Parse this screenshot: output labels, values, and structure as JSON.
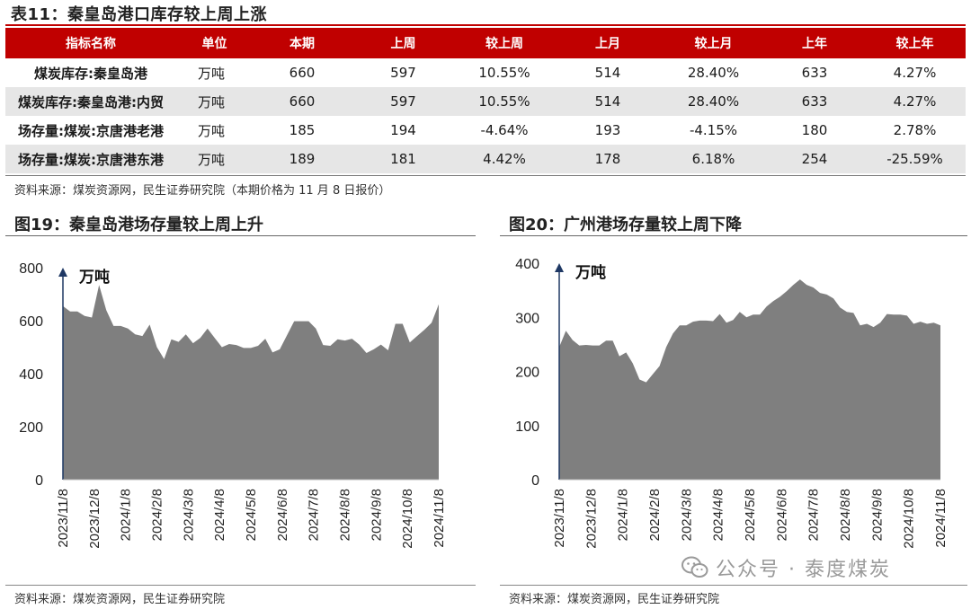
{
  "table": {
    "title": "表11：秦皇岛港口库存较上周上涨",
    "headers": [
      "指标名称",
      "单位",
      "本期",
      "上周",
      "较上周",
      "上月",
      "较上月",
      "上年",
      "较上年"
    ],
    "rows": [
      [
        "煤炭库存:秦皇岛港",
        "万吨",
        "660",
        "597",
        "10.55%",
        "514",
        "28.40%",
        "633",
        "4.27%"
      ],
      [
        "煤炭库存:秦皇岛港:内贸",
        "万吨",
        "660",
        "597",
        "10.55%",
        "514",
        "28.40%",
        "633",
        "4.27%"
      ],
      [
        "场存量:煤炭:京唐港老港",
        "万吨",
        "185",
        "194",
        "-4.64%",
        "193",
        "-4.15%",
        "180",
        "2.78%"
      ],
      [
        "场存量:煤炭:京唐港东港",
        "万吨",
        "189",
        "181",
        "4.42%",
        "178",
        "6.18%",
        "254",
        "-25.59%"
      ]
    ],
    "source": "资料来源：煤炭资源网，民生证券研究院（本期价格为 11 月 8 日报价）"
  },
  "fig19": {
    "title": "图19：秦皇岛港场存量较上周上升",
    "source": "资料来源：煤炭资源网，民生证券研究院"
  },
  "fig20": {
    "title": "图20：广州港场存量较上周下降",
    "source": "资料来源：煤炭资源网，民生证券研究院"
  },
  "watermark": {
    "text": "公众号 · 泰度煤炭",
    "icon": "wechat-icon"
  },
  "colors": {
    "accent": "#c00000",
    "area": "#7f7f7f",
    "axis": "#1f3864"
  },
  "chart_data": [
    {
      "type": "area",
      "title": "图19：秦皇岛港场存量较上周上升",
      "ylabel": "万吨",
      "ylim": [
        0,
        800
      ],
      "yticks": [
        0,
        200,
        400,
        600,
        800
      ],
      "xticks": [
        "2023/11/8",
        "2023/12/8",
        "2024/1/8",
        "2024/2/8",
        "2024/3/8",
        "2024/4/8",
        "2024/5/8",
        "2024/6/8",
        "2024/7/8",
        "2024/8/8",
        "2024/9/8",
        "2024/10/8",
        "2024/11/8"
      ],
      "series": [
        {
          "name": "秦皇岛港场存量",
          "values": [
            655,
            635,
            635,
            618,
            612,
            735,
            640,
            580,
            580,
            570,
            548,
            542,
            585,
            500,
            455,
            530,
            520,
            548,
            515,
            535,
            570,
            535,
            500,
            512,
            508,
            497,
            497,
            505,
            532,
            480,
            492,
            545,
            598,
            598,
            598,
            570,
            508,
            505,
            530,
            525,
            532,
            510,
            478,
            492,
            510,
            488,
            588,
            588,
            518,
            542,
            565,
            592,
            662
          ]
        }
      ]
    },
    {
      "type": "area",
      "title": "图20：广州港场存量较上周下降",
      "ylabel": "万吨",
      "ylim": [
        0,
        400
      ],
      "yticks": [
        0,
        100,
        200,
        300,
        400
      ],
      "xticks": [
        "2023/11/8",
        "2023/12/8",
        "2024/1/8",
        "2024/2/8",
        "2024/3/8",
        "2024/4/8",
        "2024/5/8",
        "2024/6/8",
        "2024/7/8",
        "2024/8/8",
        "2024/9/8",
        "2024/10/8",
        "2024/11/8"
      ],
      "series": [
        {
          "name": "广州港场存量",
          "values": [
            245,
            275,
            258,
            248,
            249,
            248,
            248,
            257,
            257,
            228,
            235,
            215,
            185,
            180,
            195,
            210,
            245,
            270,
            285,
            285,
            292,
            294,
            294,
            293,
            306,
            290,
            295,
            310,
            300,
            305,
            305,
            320,
            330,
            338,
            348,
            360,
            370,
            360,
            355,
            345,
            342,
            335,
            318,
            310,
            308,
            285,
            288,
            282,
            290,
            306,
            305,
            305,
            303,
            288,
            292,
            288,
            290,
            285
          ]
        }
      ]
    }
  ]
}
